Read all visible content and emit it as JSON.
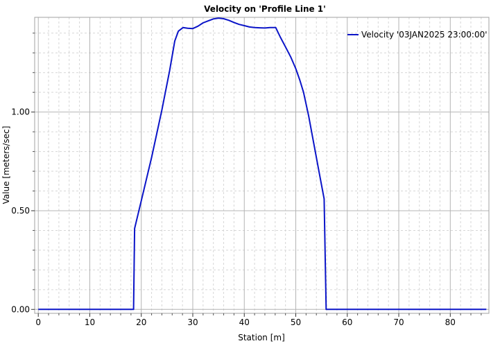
{
  "chart_data": {
    "type": "line",
    "title": "Velocity on 'Profile Line 1'",
    "xlabel": "Station [m]",
    "ylabel": "Value [meters/sec]",
    "xlim": [
      -0.7,
      87.5
    ],
    "ylim": [
      -0.02,
      1.48
    ],
    "x_ticks": [
      0,
      10,
      20,
      30,
      40,
      50,
      60,
      70,
      80
    ],
    "x_tick_labels": [
      "0",
      "10",
      "20",
      "30",
      "40",
      "50",
      "60",
      "70",
      "80"
    ],
    "y_ticks": [
      0.0,
      0.5,
      1.0
    ],
    "y_tick_labels": [
      "0.00",
      "0.50",
      "1.00"
    ],
    "grid": true,
    "legend_position": "top-right",
    "series": [
      {
        "name": "Velocity '03JAN2025 23:00:00'",
        "color": "#0a14c8",
        "x": [
          0,
          18.5,
          18.7,
          20,
          22,
          24,
          25.5,
          26.5,
          27.2,
          28.1,
          29,
          30,
          31,
          32,
          33,
          34,
          35,
          36,
          37,
          38,
          39,
          40,
          41,
          42,
          43,
          44,
          45,
          46.1,
          47,
          48,
          49,
          50,
          50.8,
          51.5,
          52.5,
          53.5,
          54.5,
          55.5,
          55.9,
          56.2,
          87
        ],
        "y": [
          0.0,
          0.0,
          0.41,
          0.55,
          0.77,
          1.01,
          1.21,
          1.36,
          1.41,
          1.428,
          1.425,
          1.423,
          1.435,
          1.452,
          1.462,
          1.472,
          1.476,
          1.473,
          1.465,
          1.454,
          1.444,
          1.438,
          1.431,
          1.428,
          1.427,
          1.426,
          1.428,
          1.428,
          1.38,
          1.33,
          1.28,
          1.22,
          1.16,
          1.1,
          0.98,
          0.84,
          0.7,
          0.56,
          0.0,
          0.0,
          0.0
        ]
      }
    ]
  }
}
